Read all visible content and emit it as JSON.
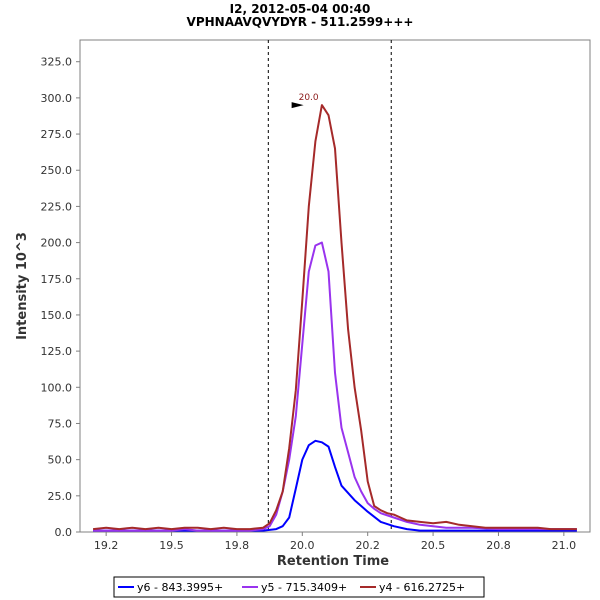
{
  "chart_data": {
    "type": "line",
    "title": "I2, 2012-05-04 00:40",
    "subtitle": "VPHNAAVQVYDYR - 511.2599+++",
    "xlabel": "Retention Time",
    "ylabel": "Intensity 10^3",
    "xlim": [
      19.1,
      21.05
    ],
    "ylim": [
      0,
      340
    ],
    "xticks": [
      "19.2",
      "19.5",
      "19.8",
      "20.0",
      "20.2",
      "20.5",
      "20.8",
      "21.0"
    ],
    "xtick_values": [
      19.2,
      19.45,
      19.7,
      19.95,
      20.2,
      20.45,
      20.7,
      20.95
    ],
    "yticks": [
      "0.0",
      "25.0",
      "50.0",
      "75.0",
      "100.0",
      "125.0",
      "150.0",
      "175.0",
      "200.0",
      "225.0",
      "250.0",
      "275.0",
      "300.0",
      "325.0"
    ],
    "ytick_values": [
      0,
      25,
      50,
      75,
      100,
      125,
      150,
      175,
      200,
      225,
      250,
      275,
      300,
      325
    ],
    "vlines": [
      19.82,
      20.29
    ],
    "annotation": {
      "text": "20.0",
      "x": 19.955,
      "y": 295
    },
    "grid": false,
    "legend_position": "bottom",
    "series": [
      {
        "name": "y6 - 843.3995+",
        "color": "#0000ff",
        "x": [
          19.15,
          19.2,
          19.25,
          19.3,
          19.35,
          19.4,
          19.45,
          19.5,
          19.55,
          19.6,
          19.65,
          19.7,
          19.75,
          19.8,
          19.85,
          19.875,
          19.9,
          19.925,
          19.95,
          19.975,
          20.0,
          20.025,
          20.05,
          20.075,
          20.1,
          20.15,
          20.2,
          20.25,
          20.3,
          20.35,
          20.4,
          20.45,
          20.5,
          20.55,
          20.6,
          20.7,
          20.8,
          20.9,
          21.0
        ],
        "y": [
          1,
          1,
          1,
          1,
          1,
          1,
          1,
          1,
          1,
          1,
          1,
          1,
          1,
          1,
          2,
          4,
          10,
          30,
          50,
          60,
          63,
          62,
          59,
          45,
          32,
          22,
          14,
          7,
          4,
          2,
          1,
          1,
          1,
          1,
          1,
          1,
          1,
          1,
          1
        ]
      },
      {
        "name": "y5 - 715.3409+",
        "color": "#9933ee",
        "x": [
          19.15,
          19.2,
          19.25,
          19.3,
          19.35,
          19.4,
          19.45,
          19.5,
          19.55,
          19.6,
          19.65,
          19.7,
          19.75,
          19.8,
          19.825,
          19.85,
          19.875,
          19.9,
          19.925,
          19.95,
          19.975,
          20.0,
          20.025,
          20.05,
          20.075,
          20.1,
          20.125,
          20.15,
          20.175,
          20.2,
          20.225,
          20.25,
          20.3,
          20.35,
          20.4,
          20.45,
          20.5,
          20.55,
          20.6,
          20.7,
          20.8,
          20.9,
          21.0
        ],
        "y": [
          1,
          1,
          1,
          1,
          1,
          1,
          1,
          2,
          1,
          1,
          1,
          1,
          1,
          2,
          4,
          12,
          28,
          50,
          80,
          130,
          180,
          198,
          200,
          180,
          110,
          72,
          55,
          38,
          28,
          20,
          16,
          13,
          10,
          7,
          5,
          4,
          3,
          3,
          3,
          2,
          2,
          2,
          2
        ]
      },
      {
        "name": "y4 - 616.2725+",
        "color": "#a52a2a",
        "x": [
          19.15,
          19.2,
          19.25,
          19.3,
          19.35,
          19.4,
          19.45,
          19.5,
          19.55,
          19.6,
          19.65,
          19.7,
          19.75,
          19.8,
          19.825,
          19.85,
          19.875,
          19.9,
          19.925,
          19.95,
          19.975,
          20.0,
          20.025,
          20.05,
          20.075,
          20.1,
          20.125,
          20.15,
          20.175,
          20.2,
          20.225,
          20.25,
          20.275,
          20.3,
          20.325,
          20.35,
          20.4,
          20.45,
          20.5,
          20.55,
          20.6,
          20.65,
          20.7,
          20.75,
          20.8,
          20.85,
          20.9,
          20.95,
          21.0
        ],
        "y": [
          2,
          3,
          2,
          3,
          2,
          3,
          2,
          3,
          3,
          2,
          3,
          2,
          2,
          3,
          6,
          15,
          28,
          58,
          98,
          160,
          225,
          270,
          295,
          288,
          265,
          200,
          140,
          100,
          70,
          35,
          18,
          15,
          13,
          12,
          10,
          8,
          7,
          6,
          7,
          5,
          4,
          3,
          3,
          3,
          3,
          3,
          2,
          2,
          2
        ]
      }
    ]
  }
}
